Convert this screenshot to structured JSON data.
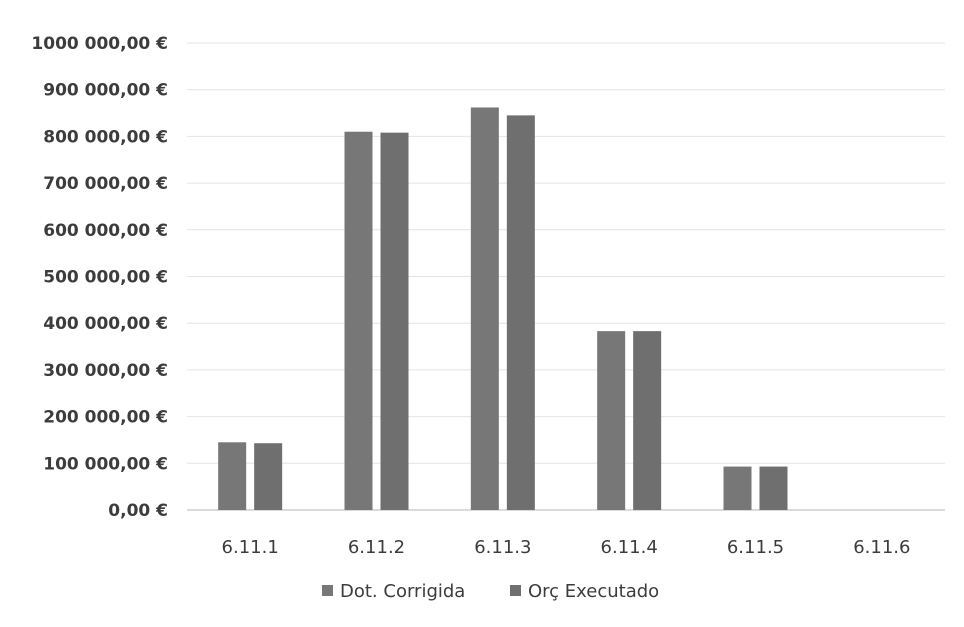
{
  "chart_data": {
    "type": "bar",
    "categories": [
      "6.11.1",
      "6.11.2",
      "6.11.3",
      "6.11.4",
      "6.11.5",
      "6.11.6"
    ],
    "series": [
      {
        "name": "Dot. Corrigida",
        "values": [
          145000,
          810000,
          862000,
          383000,
          93000,
          0
        ]
      },
      {
        "name": "Orç Executado",
        "values": [
          143000,
          808000,
          845000,
          383000,
          93000,
          0
        ]
      }
    ],
    "ylim": [
      0,
      1000000
    ],
    "y_ticks": [
      {
        "value": 0,
        "label": "0,00 €"
      },
      {
        "value": 100000,
        "label": "100 000,00 €"
      },
      {
        "value": 200000,
        "label": "200 000,00 €"
      },
      {
        "value": 300000,
        "label": "300 000,00 €"
      },
      {
        "value": 400000,
        "label": "400 000,00 €"
      },
      {
        "value": 500000,
        "label": "500 000,00 €"
      },
      {
        "value": 600000,
        "label": "600 000,00 €"
      },
      {
        "value": 700000,
        "label": "700 000,00 €"
      },
      {
        "value": 800000,
        "label": "800 000,00 €"
      },
      {
        "value": 900000,
        "label": "900 000,00 €"
      },
      {
        "value": 1000000,
        "label": "1000 000,00 €"
      }
    ],
    "grid": true,
    "legend_position": "bottom",
    "colors": {
      "series": [
        "#777777",
        "#6f6f6f"
      ],
      "grid": "#e4e4e4",
      "axis": "#cfcfcf"
    }
  }
}
